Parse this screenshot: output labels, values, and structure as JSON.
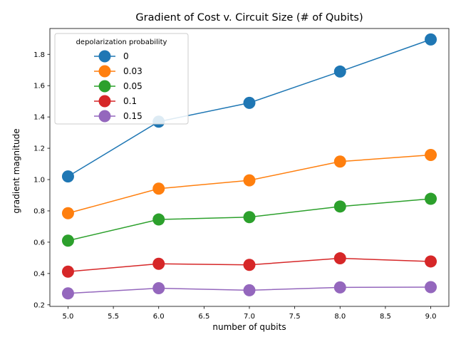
{
  "chart_data": {
    "type": "line",
    "title": "Gradient of Cost v. Circuit Size (# of Qubits)",
    "xlabel": "number of qubits",
    "ylabel": "gradient magnitude",
    "xlim": [
      4.8,
      9.2
    ],
    "ylim": [
      0.19,
      1.965
    ],
    "xticks": [
      "5.0",
      "5.5",
      "6.0",
      "6.5",
      "7.0",
      "7.5",
      "8.0",
      "8.5",
      "9.0"
    ],
    "yticks": [
      "0.2",
      "0.4",
      "0.6",
      "0.8",
      "1.0",
      "1.2",
      "1.4",
      "1.6",
      "1.8"
    ],
    "grid": false,
    "legend": {
      "title": "depolarization probability",
      "placement": "upper-left"
    },
    "x": [
      5,
      6,
      7,
      8,
      9
    ],
    "series": [
      {
        "name": "0",
        "color": "#1f77b4",
        "values": [
          1.02,
          1.37,
          1.49,
          1.69,
          1.895
        ]
      },
      {
        "name": "0.03",
        "color": "#ff7f0e",
        "values": [
          0.785,
          0.942,
          0.995,
          1.115,
          1.157
        ]
      },
      {
        "name": "0.05",
        "color": "#2ca02c",
        "values": [
          0.61,
          0.745,
          0.76,
          0.828,
          0.877
        ]
      },
      {
        "name": "0.1",
        "color": "#d62728",
        "values": [
          0.412,
          0.462,
          0.455,
          0.497,
          0.477
        ]
      },
      {
        "name": "0.15",
        "color": "#9467bd",
        "values": [
          0.273,
          0.306,
          0.293,
          0.311,
          0.313
        ]
      }
    ]
  }
}
